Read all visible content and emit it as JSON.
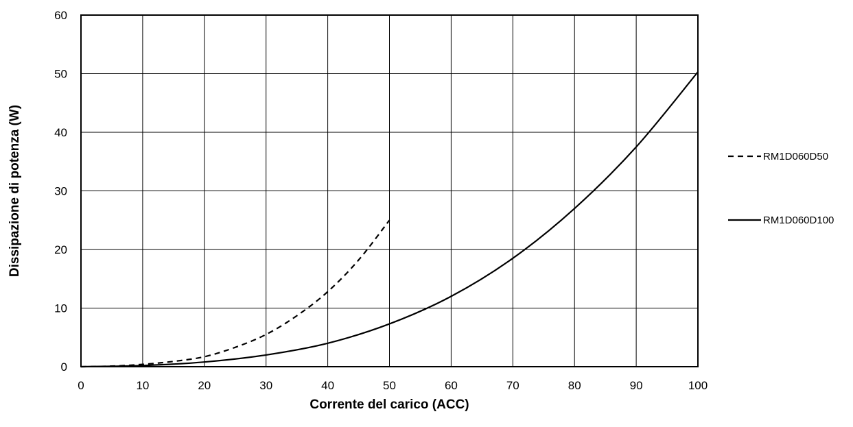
{
  "chart_data": {
    "type": "line",
    "title": "",
    "xlabel": "Corrente del carico (ACC)",
    "ylabel": "Dissipazione di potenza (W)",
    "xlim": [
      0,
      100
    ],
    "ylim": [
      0,
      60
    ],
    "xticks": [
      0,
      10,
      20,
      30,
      40,
      50,
      60,
      70,
      80,
      90,
      100
    ],
    "yticks": [
      0,
      10,
      20,
      30,
      40,
      50,
      60
    ],
    "grid": true,
    "legend_position": "right",
    "series": [
      {
        "name": "RM1D060D50",
        "style": "dashed",
        "color": "#000000",
        "x": [
          0,
          5,
          10,
          15,
          20,
          25,
          30,
          35,
          40,
          45,
          50
        ],
        "y": [
          0,
          0.1,
          0.4,
          0.9,
          1.7,
          3.3,
          5.5,
          8.7,
          12.8,
          18.2,
          25.0
        ]
      },
      {
        "name": "RM1D060D100",
        "style": "solid",
        "color": "#000000",
        "x": [
          0,
          10,
          20,
          30,
          40,
          50,
          60,
          70,
          80,
          90,
          100
        ],
        "y": [
          0,
          0.2,
          0.8,
          2.0,
          4.0,
          7.3,
          12.0,
          18.5,
          27.0,
          37.5,
          50.3
        ]
      }
    ]
  }
}
